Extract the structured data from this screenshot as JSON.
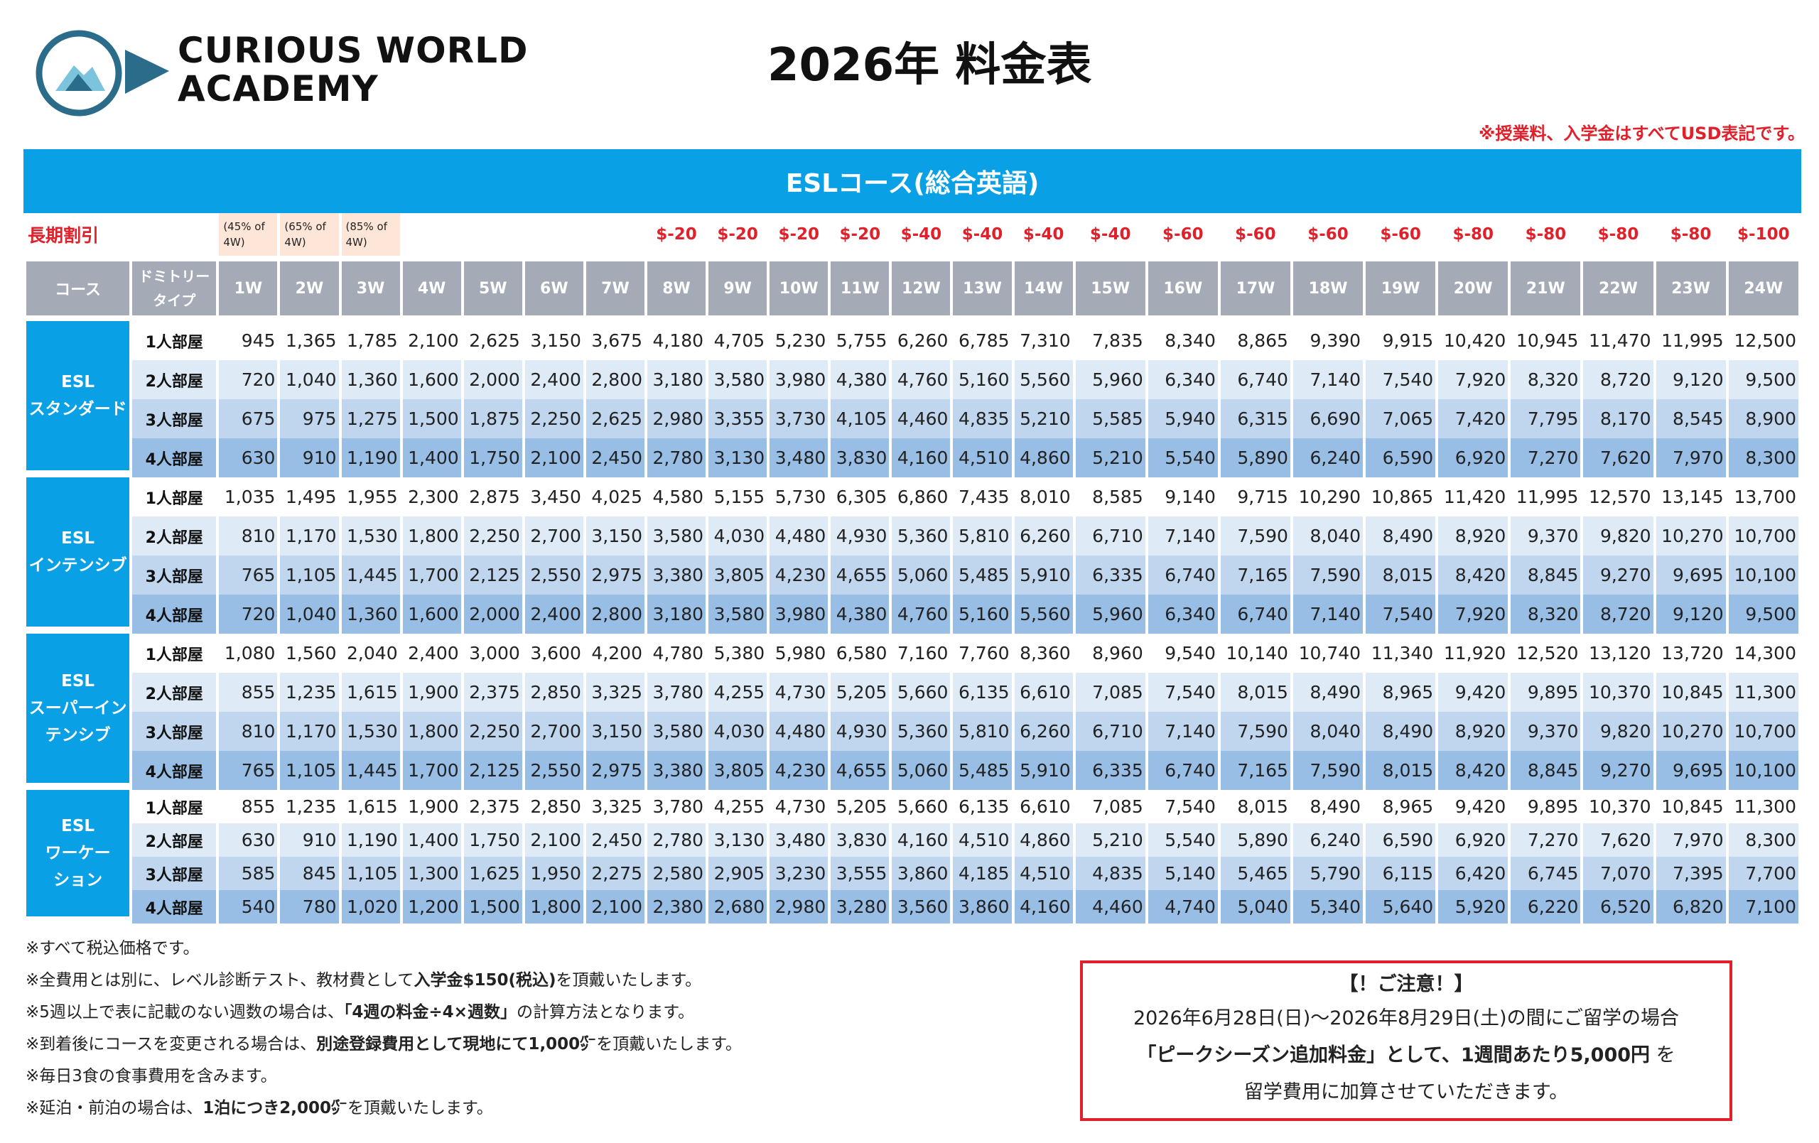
{
  "header": {
    "logo_line1": "CURIOUS WORLD",
    "logo_line2": "ACADEMY",
    "title": "2026年 料金表",
    "usd_note": "※授業料、入学金はすべてUSD表記です。"
  },
  "banner": "ESLコース(総合英語)",
  "discount": {
    "label": "長期割引",
    "pct": [
      "(45% of 4W)",
      "(65% of 4W)",
      "(85% of 4W)"
    ],
    "values": [
      "$-20",
      "$-20",
      "$-20",
      "$-20",
      "$-40",
      "$-40",
      "$-40",
      "$-40",
      "$-60",
      "$-60",
      "$-60",
      "$-60",
      "$-80",
      "$-80",
      "$-80",
      "$-80",
      "$-100"
    ]
  },
  "columns": {
    "course": "コース",
    "dorm": "ドミトリータイプ",
    "weeks": [
      "1W",
      "2W",
      "3W",
      "4W",
      "5W",
      "6W",
      "7W",
      "8W",
      "9W",
      "10W",
      "11W",
      "12W",
      "13W",
      "14W",
      "15W",
      "16W",
      "17W",
      "18W",
      "19W",
      "20W",
      "21W",
      "22W",
      "23W",
      "24W"
    ]
  },
  "rooms": [
    "1人部屋",
    "2人部屋",
    "3人部屋",
    "4人部屋"
  ],
  "courses": [
    {
      "name": "ESL\nスタンダード",
      "rows": [
        [
          "945",
          "1,365",
          "1,785",
          "2,100",
          "2,625",
          "3,150",
          "3,675",
          "4,180",
          "4,705",
          "5,230",
          "5,755",
          "6,260",
          "6,785",
          "7,310",
          "7,835",
          "8,340",
          "8,865",
          "9,390",
          "9,915",
          "10,420",
          "10,945",
          "11,470",
          "11,995",
          "12,500"
        ],
        [
          "720",
          "1,040",
          "1,360",
          "1,600",
          "2,000",
          "2,400",
          "2,800",
          "3,180",
          "3,580",
          "3,980",
          "4,380",
          "4,760",
          "5,160",
          "5,560",
          "5,960",
          "6,340",
          "6,740",
          "7,140",
          "7,540",
          "7,920",
          "8,320",
          "8,720",
          "9,120",
          "9,500"
        ],
        [
          "675",
          "975",
          "1,275",
          "1,500",
          "1,875",
          "2,250",
          "2,625",
          "2,980",
          "3,355",
          "3,730",
          "4,105",
          "4,460",
          "4,835",
          "5,210",
          "5,585",
          "5,940",
          "6,315",
          "6,690",
          "7,065",
          "7,420",
          "7,795",
          "8,170",
          "8,545",
          "8,900"
        ],
        [
          "630",
          "910",
          "1,190",
          "1,400",
          "1,750",
          "2,100",
          "2,450",
          "2,780",
          "3,130",
          "3,480",
          "3,830",
          "4,160",
          "4,510",
          "4,860",
          "5,210",
          "5,540",
          "5,890",
          "6,240",
          "6,590",
          "6,920",
          "7,270",
          "7,620",
          "7,970",
          "8,300"
        ]
      ]
    },
    {
      "name": "ESL\nインテンシブ",
      "rows": [
        [
          "1,035",
          "1,495",
          "1,955",
          "2,300",
          "2,875",
          "3,450",
          "4,025",
          "4,580",
          "5,155",
          "5,730",
          "6,305",
          "6,860",
          "7,435",
          "8,010",
          "8,585",
          "9,140",
          "9,715",
          "10,290",
          "10,865",
          "11,420",
          "11,995",
          "12,570",
          "13,145",
          "13,700"
        ],
        [
          "810",
          "1,170",
          "1,530",
          "1,800",
          "2,250",
          "2,700",
          "3,150",
          "3,580",
          "4,030",
          "4,480",
          "4,930",
          "5,360",
          "5,810",
          "6,260",
          "6,710",
          "7,140",
          "7,590",
          "8,040",
          "8,490",
          "8,920",
          "9,370",
          "9,820",
          "10,270",
          "10,700"
        ],
        [
          "765",
          "1,105",
          "1,445",
          "1,700",
          "2,125",
          "2,550",
          "2,975",
          "3,380",
          "3,805",
          "4,230",
          "4,655",
          "5,060",
          "5,485",
          "5,910",
          "6,335",
          "6,740",
          "7,165",
          "7,590",
          "8,015",
          "8,420",
          "8,845",
          "9,270",
          "9,695",
          "10,100"
        ],
        [
          "720",
          "1,040",
          "1,360",
          "1,600",
          "2,000",
          "2,400",
          "2,800",
          "3,180",
          "3,580",
          "3,980",
          "4,380",
          "4,760",
          "5,160",
          "5,560",
          "5,960",
          "6,340",
          "6,740",
          "7,140",
          "7,540",
          "7,920",
          "8,320",
          "8,720",
          "9,120",
          "9,500"
        ]
      ]
    },
    {
      "name": "ESL\nスーパーイン\nテンシブ",
      "rows": [
        [
          "1,080",
          "1,560",
          "2,040",
          "2,400",
          "3,000",
          "3,600",
          "4,200",
          "4,780",
          "5,380",
          "5,980",
          "6,580",
          "7,160",
          "7,760",
          "8,360",
          "8,960",
          "9,540",
          "10,140",
          "10,740",
          "11,340",
          "11,920",
          "12,520",
          "13,120",
          "13,720",
          "14,300"
        ],
        [
          "855",
          "1,235",
          "1,615",
          "1,900",
          "2,375",
          "2,850",
          "3,325",
          "3,780",
          "4,255",
          "4,730",
          "5,205",
          "5,660",
          "6,135",
          "6,610",
          "7,085",
          "7,540",
          "8,015",
          "8,490",
          "8,965",
          "9,420",
          "9,895",
          "10,370",
          "10,845",
          "11,300"
        ],
        [
          "810",
          "1,170",
          "1,530",
          "1,800",
          "2,250",
          "2,700",
          "3,150",
          "3,580",
          "4,030",
          "4,480",
          "4,930",
          "5,360",
          "5,810",
          "6,260",
          "6,710",
          "7,140",
          "7,590",
          "8,040",
          "8,490",
          "8,920",
          "9,370",
          "9,820",
          "10,270",
          "10,700"
        ],
        [
          "765",
          "1,105",
          "1,445",
          "1,700",
          "2,125",
          "2,550",
          "2,975",
          "3,380",
          "3,805",
          "4,230",
          "4,655",
          "5,060",
          "5,485",
          "5,910",
          "6,335",
          "6,740",
          "7,165",
          "7,590",
          "8,015",
          "8,420",
          "8,845",
          "9,270",
          "9,695",
          "10,100"
        ]
      ]
    },
    {
      "name": "ESL\nワーケー\nション",
      "rows": [
        [
          "855",
          "1,235",
          "1,615",
          "1,900",
          "2,375",
          "2,850",
          "3,325",
          "3,780",
          "4,255",
          "4,730",
          "5,205",
          "5,660",
          "6,135",
          "6,610",
          "7,085",
          "7,540",
          "8,015",
          "8,490",
          "8,965",
          "9,420",
          "9,895",
          "10,370",
          "10,845",
          "11,300"
        ],
        [
          "630",
          "910",
          "1,190",
          "1,400",
          "1,750",
          "2,100",
          "2,450",
          "2,780",
          "3,130",
          "3,480",
          "3,830",
          "4,160",
          "4,510",
          "4,860",
          "5,210",
          "5,540",
          "5,890",
          "6,240",
          "6,590",
          "6,920",
          "7,270",
          "7,620",
          "7,970",
          "8,300"
        ],
        [
          "585",
          "845",
          "1,105",
          "1,300",
          "1,625",
          "1,950",
          "2,275",
          "2,580",
          "2,905",
          "3,230",
          "3,555",
          "3,860",
          "4,185",
          "4,510",
          "4,835",
          "5,140",
          "5,465",
          "5,790",
          "6,115",
          "6,420",
          "6,745",
          "7,070",
          "7,395",
          "7,700"
        ],
        [
          "540",
          "780",
          "1,020",
          "1,200",
          "1,500",
          "1,800",
          "2,100",
          "2,380",
          "2,680",
          "2,980",
          "3,280",
          "3,560",
          "3,860",
          "4,160",
          "4,460",
          "4,740",
          "5,040",
          "5,340",
          "5,640",
          "5,920",
          "6,220",
          "6,520",
          "6,820",
          "7,100"
        ]
      ]
    }
  ],
  "notes": {
    "n1": "※すべて税込価格です。",
    "n2a": "※全費用とは別に、レベル診断テスト、教材費として",
    "n2b": "入学金$150(税込)",
    "n2c": "を頂戴いたします。",
    "n3a": "※5週以上で表に記載のない週数の場合は、",
    "n3b": "「4週の料金÷4×週数」",
    "n3c": "の計算方法となります。",
    "n4a": "※到着後にコースを変更される場合は、",
    "n4b": "別途登録費用として現地にて1,000㌬",
    "n4c": "を頂戴いたします。",
    "n5": "※毎日3食の食事費用を含みます。",
    "n6a": "※延泊・前泊の場合は、",
    "n6b": "1泊につき2,000㌬",
    "n6c": "を頂戴いたします。"
  },
  "notice": {
    "title": "【！ご注意！】",
    "line1": "2026年6月28日(日)〜2026年8月29日(土)の間にご留学の場合",
    "line2a": "「ピークシーズン追加料金」として、1週間あたり5,000円",
    "line2b": "を",
    "line3": "留学費用に加算させていただきます。"
  },
  "colors": {
    "accent_blue": "#0aa0e6",
    "header_gray": "#a4aab6",
    "discount_red": "#e0202a",
    "logo_teal": "#2b6c8a"
  }
}
